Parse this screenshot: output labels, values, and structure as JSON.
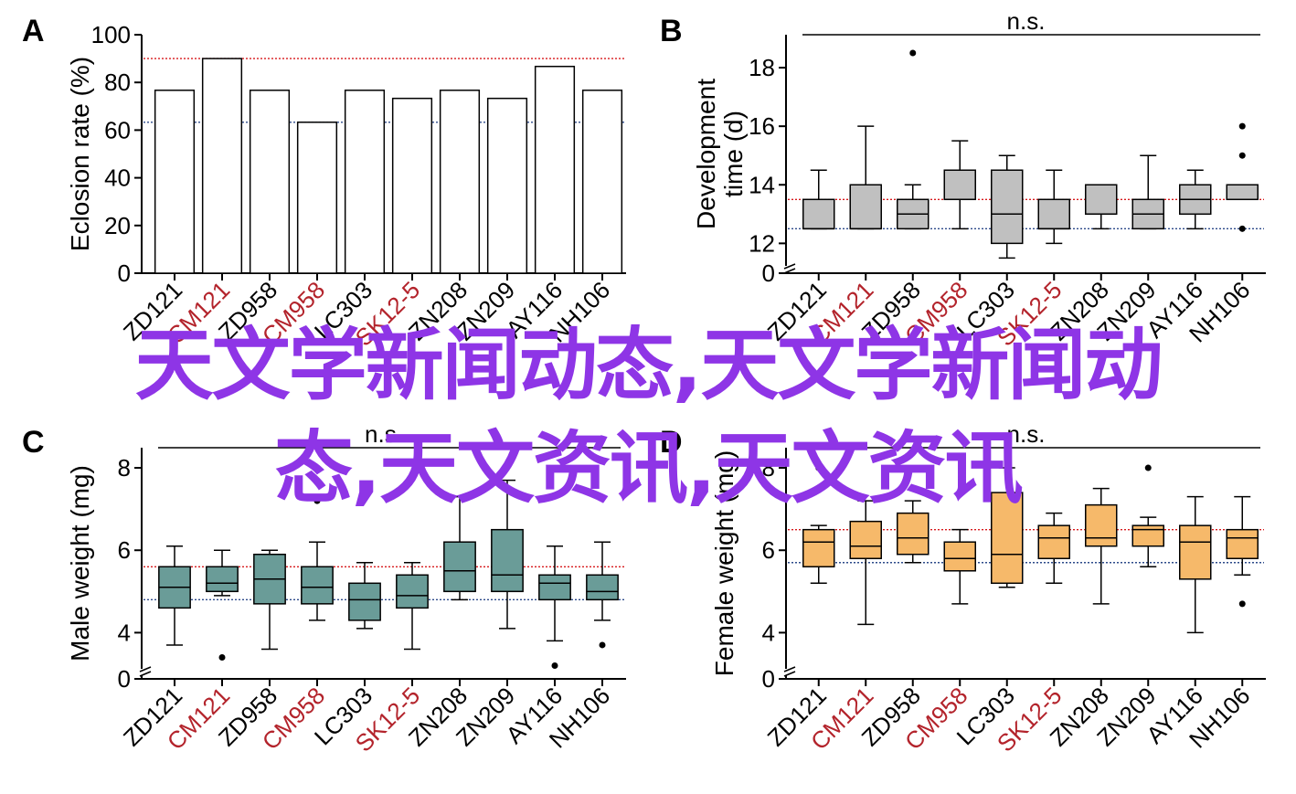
{
  "colors": {
    "axis": "#000000",
    "highlight_label": "#b3232b",
    "red_ref": "#d7191c",
    "blue_ref": "#2c4a8a",
    "bar_fill": "#ffffff",
    "gray_box": "#c0c0c0",
    "teal_box": "#6a9c98",
    "orange_box": "#f6b96a",
    "watermark": "#8e35e6"
  },
  "watermark": {
    "line1": "天文学新闻动态,天文学新闻动",
    "line2": "态,天文资讯,天文资讯"
  },
  "chart_data": [
    {
      "panel": "A",
      "type": "bar",
      "ylabel": "Eclosion rate (%)",
      "ylim": [
        0,
        100
      ],
      "yticks": [
        0,
        20,
        40,
        60,
        80,
        100
      ],
      "categories": [
        "ZD121",
        "CM121",
        "ZD958",
        "CM958",
        "LC303",
        "SK12-5",
        "ZN208",
        "ZN209",
        "AY116",
        "NH106"
      ],
      "highlighted": [
        "CM121",
        "CM958",
        "SK12-5"
      ],
      "values": [
        76.7,
        90.0,
        76.7,
        63.3,
        76.7,
        73.3,
        76.7,
        73.3,
        86.7,
        76.7
      ],
      "ref_lines": [
        {
          "value": 90.0,
          "color": "red"
        },
        {
          "value": 63.3,
          "color": "blue"
        }
      ],
      "significance": ""
    },
    {
      "panel": "B",
      "type": "box",
      "ylabel": "Development time (d)",
      "yticks": [
        0,
        12,
        14,
        16,
        18
      ],
      "ylim": [
        11.2,
        19
      ],
      "axis_break": true,
      "categories": [
        "ZD121",
        "CM121",
        "ZD958",
        "CM958",
        "LC303",
        "SK12-5",
        "ZN208",
        "ZN209",
        "AY116",
        "NH106"
      ],
      "highlighted": [
        "CM121",
        "CM958",
        "SK12-5"
      ],
      "boxes": [
        {
          "wlo": 12.5,
          "q1": 12.5,
          "med": 12.5,
          "q3": 13.5,
          "whi": 14.5,
          "out": []
        },
        {
          "wlo": 12.5,
          "q1": 12.5,
          "med": 12.5,
          "q3": 14.0,
          "whi": 16.0,
          "out": []
        },
        {
          "wlo": 12.5,
          "q1": 12.5,
          "med": 13.0,
          "q3": 13.5,
          "whi": 14.0,
          "out": [
            18.5
          ]
        },
        {
          "wlo": 12.5,
          "q1": 13.5,
          "med": 13.5,
          "q3": 14.5,
          "whi": 15.5,
          "out": []
        },
        {
          "wlo": 11.5,
          "q1": 12.0,
          "med": 13.0,
          "q3": 14.5,
          "whi": 15.0,
          "out": []
        },
        {
          "wlo": 12.0,
          "q1": 12.5,
          "med": 12.5,
          "q3": 13.5,
          "whi": 14.5,
          "out": []
        },
        {
          "wlo": 12.5,
          "q1": 13.0,
          "med": 13.0,
          "q3": 14.0,
          "whi": 14.0,
          "out": []
        },
        {
          "wlo": 12.5,
          "q1": 12.5,
          "med": 13.0,
          "q3": 13.5,
          "whi": 15.0,
          "out": []
        },
        {
          "wlo": 12.5,
          "q1": 13.0,
          "med": 13.5,
          "q3": 14.0,
          "whi": 14.5,
          "out": []
        },
        {
          "wlo": 13.5,
          "q1": 13.5,
          "med": 14.0,
          "q3": 14.0,
          "whi": 14.0,
          "out": [
            16.0,
            15.0,
            12.5
          ]
        }
      ],
      "ref_lines": [
        {
          "value": 13.5,
          "color": "red"
        },
        {
          "value": 12.5,
          "color": "blue"
        }
      ],
      "significance": "n.s."
    },
    {
      "panel": "C",
      "type": "box",
      "ylabel": "Male weight (mg)",
      "yticks": [
        0,
        4,
        6,
        8
      ],
      "ylim": [
        3.1,
        8.4
      ],
      "axis_break": true,
      "categories": [
        "ZD121",
        "CM121",
        "ZD958",
        "CM958",
        "LC303",
        "SK12-5",
        "ZN208",
        "ZN209",
        "AY116",
        "NH106"
      ],
      "highlighted": [
        "CM121",
        "CM958",
        "SK12-5"
      ],
      "boxes": [
        {
          "wlo": 3.7,
          "q1": 4.6,
          "med": 5.1,
          "q3": 5.6,
          "whi": 6.1,
          "out": []
        },
        {
          "wlo": 4.9,
          "q1": 5.0,
          "med": 5.2,
          "q3": 5.6,
          "whi": 6.0,
          "out": [
            3.4
          ]
        },
        {
          "wlo": 3.6,
          "q1": 4.7,
          "med": 5.3,
          "q3": 5.9,
          "whi": 6.0,
          "out": []
        },
        {
          "wlo": 4.3,
          "q1": 4.7,
          "med": 5.1,
          "q3": 5.6,
          "whi": 6.2,
          "out": [
            7.2
          ]
        },
        {
          "wlo": 4.1,
          "q1": 4.3,
          "med": 4.8,
          "q3": 5.2,
          "whi": 5.7,
          "out": []
        },
        {
          "wlo": 3.6,
          "q1": 4.6,
          "med": 4.9,
          "q3": 5.4,
          "whi": 5.7,
          "out": []
        },
        {
          "wlo": 4.8,
          "q1": 5.0,
          "med": 5.5,
          "q3": 6.2,
          "whi": 7.3,
          "out": []
        },
        {
          "wlo": 4.1,
          "q1": 5.0,
          "med": 5.4,
          "q3": 6.5,
          "whi": 7.7,
          "out": []
        },
        {
          "wlo": 3.8,
          "q1": 4.8,
          "med": 5.2,
          "q3": 5.4,
          "whi": 6.1,
          "out": [
            3.2
          ]
        },
        {
          "wlo": 4.3,
          "q1": 4.8,
          "med": 5.0,
          "q3": 5.4,
          "whi": 6.2,
          "out": [
            3.7
          ]
        }
      ],
      "ref_lines": [
        {
          "value": 5.6,
          "color": "red"
        },
        {
          "value": 4.8,
          "color": "blue"
        }
      ],
      "significance": "n.s."
    },
    {
      "panel": "D",
      "type": "box",
      "ylabel": "Female weight (mg)",
      "yticks": [
        0,
        4,
        6,
        8
      ],
      "ylim": [
        3.1,
        8.4
      ],
      "axis_break": true,
      "categories": [
        "ZD121",
        "CM121",
        "ZD958",
        "CM958",
        "LC303",
        "SK12-5",
        "ZN208",
        "ZN209",
        "AY116",
        "NH106"
      ],
      "highlighted": [
        "CM121",
        "CM958",
        "SK12-5"
      ],
      "boxes": [
        {
          "wlo": 5.2,
          "q1": 5.6,
          "med": 6.2,
          "q3": 6.5,
          "whi": 6.6,
          "out": [
            8.0
          ]
        },
        {
          "wlo": 4.2,
          "q1": 5.8,
          "med": 6.1,
          "q3": 6.7,
          "whi": 7.2,
          "out": []
        },
        {
          "wlo": 5.7,
          "q1": 5.9,
          "med": 6.3,
          "q3": 6.9,
          "whi": 7.2,
          "out": []
        },
        {
          "wlo": 4.7,
          "q1": 5.5,
          "med": 5.8,
          "q3": 6.2,
          "whi": 6.5,
          "out": [
            7.4
          ]
        },
        {
          "wlo": 5.1,
          "q1": 5.2,
          "med": 5.9,
          "q3": 7.4,
          "whi": 8.0,
          "out": []
        },
        {
          "wlo": 5.2,
          "q1": 5.8,
          "med": 6.3,
          "q3": 6.6,
          "whi": 6.9,
          "out": []
        },
        {
          "wlo": 4.7,
          "q1": 6.1,
          "med": 6.3,
          "q3": 7.1,
          "whi": 7.5,
          "out": []
        },
        {
          "wlo": 5.6,
          "q1": 6.1,
          "med": 6.5,
          "q3": 6.6,
          "whi": 6.8,
          "out": [
            8.0
          ]
        },
        {
          "wlo": 4.0,
          "q1": 5.3,
          "med": 6.2,
          "q3": 6.6,
          "whi": 7.3,
          "out": []
        },
        {
          "wlo": 5.4,
          "q1": 5.8,
          "med": 6.3,
          "q3": 6.5,
          "whi": 7.3,
          "out": [
            4.7
          ]
        }
      ],
      "ref_lines": [
        {
          "value": 6.5,
          "color": "red"
        },
        {
          "value": 5.7,
          "color": "blue"
        }
      ],
      "significance": "n.s."
    }
  ]
}
